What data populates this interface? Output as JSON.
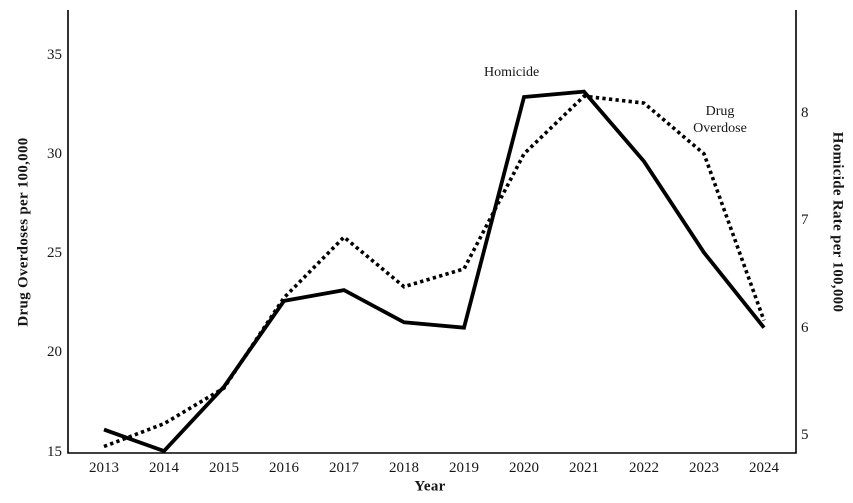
{
  "figure": {
    "background": "#ffffff",
    "line_color": "#000000",
    "text_color": "#161616"
  },
  "chart_data": {
    "type": "line",
    "title": "",
    "x": [
      "2013",
      "2014",
      "2015",
      "2016",
      "2017",
      "2018",
      "2019",
      "2020",
      "2021",
      "2022",
      "2023",
      "2024"
    ],
    "xlabel": "Year",
    "left_axis": {
      "label": "Drug Overdoses per 100,000",
      "ticks": [
        "15",
        "20",
        "25",
        "30",
        "35"
      ],
      "range": [
        15,
        35
      ]
    },
    "right_axis": {
      "label": "Homicide Rate per 100,000",
      "ticks": [
        "5",
        "6",
        "7",
        "8"
      ],
      "range": [
        5,
        8
      ]
    },
    "series": [
      {
        "name": "Homicide",
        "axis": "right",
        "line_style": "solid",
        "color": "#000000",
        "values": [
          5.05,
          4.85,
          5.45,
          6.25,
          6.35,
          6.05,
          6.0,
          8.15,
          8.2,
          7.55,
          6.7,
          6.0
        ]
      },
      {
        "name": "Drug Overdose",
        "axis": "left",
        "line_style": "dotted",
        "color": "#000000",
        "values": [
          15.25,
          16.4,
          18.2,
          22.75,
          25.8,
          23.3,
          24.2,
          30.0,
          32.9,
          32.55,
          30.0,
          21.6
        ]
      }
    ],
    "annotations": [
      {
        "text": "Homicide",
        "series": "Homicide"
      },
      {
        "text": "Drug\nOverdose",
        "series": "Drug Overdose"
      }
    ],
    "legend_position": "none",
    "grid": false
  }
}
